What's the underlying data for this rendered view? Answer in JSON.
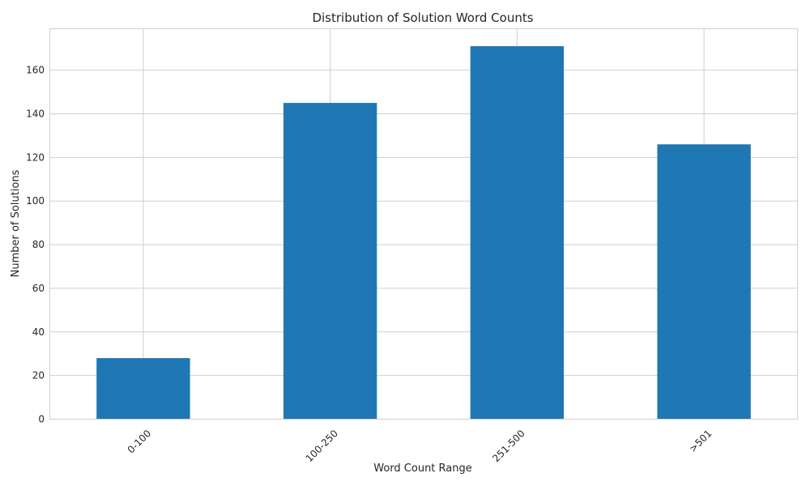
{
  "chart_data": {
    "type": "bar",
    "title": "Distribution of Solution Word Counts",
    "xlabel": "Word Count Range",
    "ylabel": "Number of Solutions",
    "categories": [
      "0-100",
      "100-250",
      "251-500",
      ">501"
    ],
    "values": [
      28,
      145,
      171,
      126
    ],
    "ylim": [
      0,
      179
    ],
    "yticks": [
      0,
      20,
      40,
      60,
      80,
      100,
      120,
      140,
      160
    ],
    "grid": true,
    "bar_color": "#1f77b4",
    "grid_color": "#cfcfcf",
    "text_color": "#262626"
  }
}
